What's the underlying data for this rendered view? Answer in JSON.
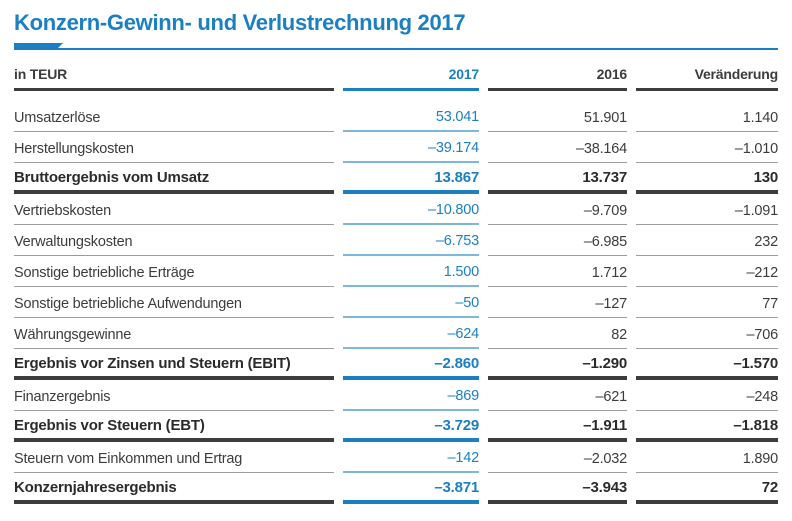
{
  "title": "Konzern-Gewinn- und Verlustrechnung 2017",
  "colors": {
    "accent_blue": "#1b7fc2",
    "light_blue_rule": "#7cb8dc",
    "dark_rule": "#3d3d3d",
    "gray_rule": "#9c9c9c",
    "body_text": "#3c3c3c"
  },
  "table": {
    "unit_label": "in TEUR",
    "columns": [
      "2017",
      "2016",
      "Veränderung"
    ],
    "rows": [
      {
        "label": "Umsatzerlöse",
        "v2017": "53.041",
        "v2016": "51.901",
        "change": "1.140",
        "bold": false
      },
      {
        "label": "Herstellungskosten",
        "v2017": "–39.174",
        "v2016": "–38.164",
        "change": "–1.010",
        "bold": false
      },
      {
        "label": "Bruttoergebnis vom Umsatz",
        "v2017": "13.867",
        "v2016": "13.737",
        "change": "130",
        "bold": true
      },
      {
        "label": "Vertriebskosten",
        "v2017": "–10.800",
        "v2016": "–9.709",
        "change": "–1.091",
        "bold": false
      },
      {
        "label": "Verwaltungskosten",
        "v2017": "–6.753",
        "v2016": "–6.985",
        "change": "232",
        "bold": false
      },
      {
        "label": "Sonstige betriebliche Erträge",
        "v2017": "1.500",
        "v2016": "1.712",
        "change": "–212",
        "bold": false
      },
      {
        "label": "Sonstige betriebliche Aufwendungen",
        "v2017": "–50",
        "v2016": "–127",
        "change": "77",
        "bold": false
      },
      {
        "label": "Währungsgewinne",
        "v2017": "–624",
        "v2016": "82",
        "change": "–706",
        "bold": false
      },
      {
        "label": "Ergebnis vor Zinsen und Steuern (EBIT)",
        "v2017": "–2.860",
        "v2016": "–1.290",
        "change": "–1.570",
        "bold": true
      },
      {
        "label": "Finanzergebnis",
        "v2017": "–869",
        "v2016": "–621",
        "change": "–248",
        "bold": false
      },
      {
        "label": "Ergebnis vor Steuern (EBT)",
        "v2017": "–3.729",
        "v2016": "–1.911",
        "change": "–1.818",
        "bold": true
      },
      {
        "label": "Steuern vom Einkommen und Ertrag",
        "v2017": "–142",
        "v2016": "–2.032",
        "change": "1.890",
        "bold": false
      },
      {
        "label": "Konzernjahresergebnis",
        "v2017": "–3.871",
        "v2016": "–3.943",
        "change": "72",
        "bold": true
      }
    ]
  }
}
